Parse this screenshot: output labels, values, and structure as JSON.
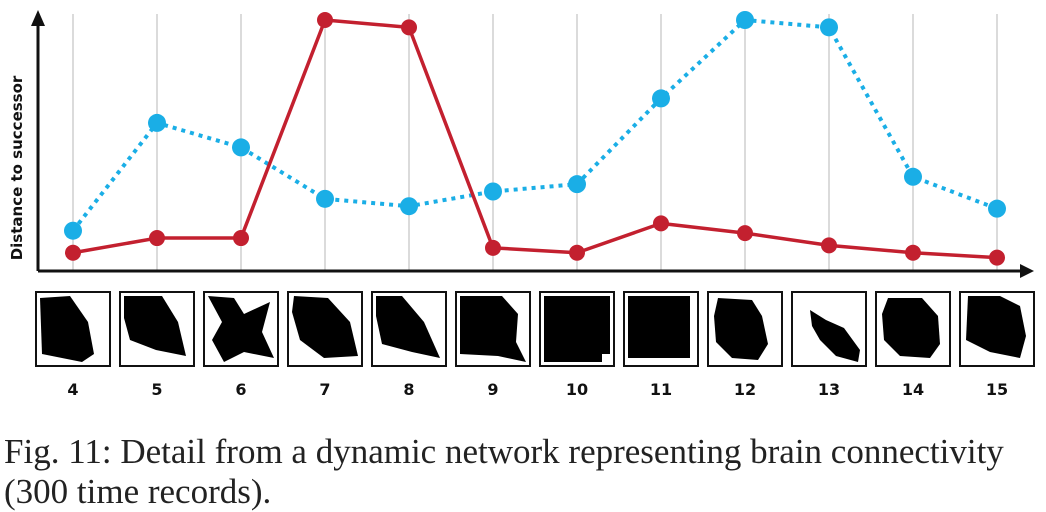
{
  "chart_data": {
    "type": "line",
    "ylabel": "Distance to successor",
    "xlabel": "",
    "x": [
      4,
      5,
      6,
      7,
      8,
      9,
      10,
      11,
      12,
      13,
      14,
      15
    ],
    "ylim": [
      0,
      100
    ],
    "grid": "vertical",
    "series": [
      {
        "color": "#c3202f",
        "style": "solid",
        "values": [
          5,
          11,
          11,
          100,
          97,
          7,
          5,
          17,
          13,
          8,
          5,
          3
        ]
      },
      {
        "color": "#1aaee6",
        "style": "dotted",
        "values": [
          14,
          58,
          48,
          27,
          24,
          30,
          33,
          68,
          100,
          97,
          36,
          23
        ]
      }
    ],
    "thumbnails": [
      "connectivity matrix at t=4",
      "t=5",
      "t=6",
      "t=7",
      "t=8",
      "t=9",
      "t=10",
      "t=11",
      "t=12",
      "t=13",
      "t=14",
      "t=15"
    ]
  },
  "caption": "Fig. 11: Detail from a dynamic network representing brain connectivity (300 time records)."
}
